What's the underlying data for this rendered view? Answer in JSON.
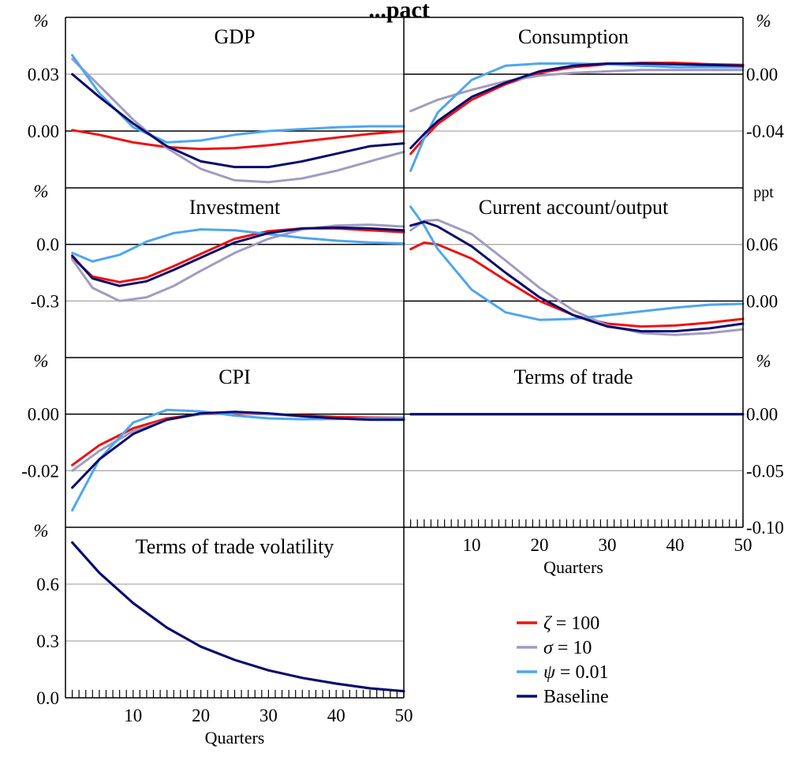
{
  "figure": {
    "title": "...pact",
    "legend": [
      {
        "symbol": "ζ",
        "text": " = 100",
        "color": "#ee1111"
      },
      {
        "symbol": "σ",
        "text": " = 10",
        "color": "#a09cc0"
      },
      {
        "symbol": "ψ",
        "text": " = 0.01",
        "color": "#4ea6ef"
      },
      {
        "symbol": "",
        "text": "Baseline",
        "color": "#0a0a6e"
      }
    ],
    "colors": {
      "grid": "#aaaaaa",
      "zero_line": "#000000",
      "frame": "#000000"
    }
  },
  "chart_data": [
    {
      "id": "gdp",
      "type": "line",
      "title": "GDP",
      "unit": "%",
      "ylim": [
        -0.03,
        0.06
      ],
      "yticks": [
        "0.00",
        "0.03"
      ],
      "series": [
        {
          "name": "ζ = 100",
          "color": "#ee1111",
          "x": [
            1,
            5,
            10,
            15,
            20,
            25,
            30,
            35,
            40,
            45,
            50
          ],
          "values": [
            0.0005,
            -0.002,
            -0.006,
            -0.0085,
            -0.0095,
            -0.009,
            -0.0075,
            -0.0055,
            -0.0035,
            -0.0015,
            0.0
          ]
        },
        {
          "name": "σ = 10",
          "color": "#a09cc0",
          "x": [
            1,
            5,
            10,
            15,
            20,
            25,
            30,
            35,
            40,
            45,
            50
          ],
          "values": [
            0.038,
            0.024,
            0.006,
            -0.009,
            -0.02,
            -0.026,
            -0.027,
            -0.025,
            -0.021,
            -0.016,
            -0.011
          ]
        },
        {
          "name": "ψ = 0.01",
          "color": "#4ea6ef",
          "x": [
            1,
            5,
            10,
            15,
            20,
            25,
            30,
            35,
            40,
            45,
            50
          ],
          "values": [
            0.04,
            0.02,
            0.002,
            -0.006,
            -0.005,
            -0.002,
            0.0,
            0.001,
            0.002,
            0.0025,
            0.0025
          ]
        },
        {
          "name": "Baseline",
          "color": "#0a0a6e",
          "x": [
            1,
            5,
            10,
            15,
            20,
            25,
            30,
            35,
            40,
            45,
            50
          ],
          "values": [
            0.03,
            0.018,
            0.004,
            -0.008,
            -0.016,
            -0.019,
            -0.019,
            -0.016,
            -0.012,
            -0.008,
            -0.0065
          ]
        }
      ]
    },
    {
      "id": "consumption",
      "type": "line",
      "title": "Consumption",
      "unit": "%",
      "ylim": [
        -0.08,
        0.04
      ],
      "yticks": [
        "0.00",
        "-0.04"
      ],
      "series": [
        {
          "name": "ζ = 100",
          "color": "#ee1111",
          "x": [
            1,
            3,
            5,
            10,
            15,
            20,
            25,
            30,
            35,
            40,
            45,
            50
          ],
          "values": [
            -0.056,
            -0.045,
            -0.035,
            -0.018,
            -0.007,
            0.001,
            0.005,
            0.007,
            0.008,
            0.008,
            0.007,
            0.0065
          ]
        },
        {
          "name": "σ = 10",
          "color": "#a09cc0",
          "x": [
            1,
            3,
            5,
            10,
            15,
            20,
            25,
            30,
            35,
            40,
            45,
            50
          ],
          "values": [
            -0.026,
            -0.022,
            -0.018,
            -0.011,
            -0.005,
            -0.001,
            0.001,
            0.002,
            0.003,
            0.003,
            0.003,
            0.003
          ]
        },
        {
          "name": "ψ = 0.01",
          "color": "#4ea6ef",
          "x": [
            1,
            3,
            5,
            10,
            15,
            20,
            25,
            30,
            35,
            40,
            45,
            50
          ],
          "values": [
            -0.068,
            -0.045,
            -0.027,
            -0.004,
            0.006,
            0.0075,
            0.0075,
            0.007,
            0.006,
            0.005,
            0.005,
            0.005
          ]
        },
        {
          "name": "Baseline",
          "color": "#0a0a6e",
          "x": [
            1,
            3,
            5,
            10,
            15,
            20,
            25,
            30,
            35,
            40,
            45,
            50
          ],
          "values": [
            -0.052,
            -0.042,
            -0.033,
            -0.016,
            -0.006,
            0.002,
            0.006,
            0.0075,
            0.0075,
            0.007,
            0.0065,
            0.006
          ]
        }
      ]
    },
    {
      "id": "investment",
      "type": "line",
      "title": "Investment",
      "unit": "%",
      "ylim": [
        -0.6,
        0.3
      ],
      "yticks": [
        "0.0",
        "-0.3"
      ],
      "series": [
        {
          "name": "ζ = 100",
          "color": "#ee1111",
          "x": [
            1,
            4,
            8,
            12,
            16,
            20,
            25,
            30,
            35,
            40,
            45,
            50
          ],
          "values": [
            -0.07,
            -0.17,
            -0.2,
            -0.175,
            -0.115,
            -0.05,
            0.03,
            0.07,
            0.085,
            0.085,
            0.075,
            0.065
          ]
        },
        {
          "name": "σ = 10",
          "color": "#a09cc0",
          "x": [
            1,
            4,
            8,
            12,
            16,
            20,
            25,
            30,
            35,
            40,
            45,
            50
          ],
          "values": [
            -0.08,
            -0.23,
            -0.3,
            -0.28,
            -0.22,
            -0.14,
            -0.045,
            0.03,
            0.08,
            0.1,
            0.105,
            0.095
          ]
        },
        {
          "name": "ψ = 0.01",
          "color": "#4ea6ef",
          "x": [
            1,
            4,
            8,
            12,
            16,
            20,
            25,
            30,
            35,
            40,
            45,
            50
          ],
          "values": [
            -0.045,
            -0.09,
            -0.055,
            0.015,
            0.06,
            0.08,
            0.075,
            0.055,
            0.035,
            0.02,
            0.01,
            0.005
          ]
        },
        {
          "name": "Baseline",
          "color": "#0a0a6e",
          "x": [
            1,
            4,
            8,
            12,
            16,
            20,
            25,
            30,
            35,
            40,
            45,
            50
          ],
          "values": [
            -0.06,
            -0.18,
            -0.22,
            -0.195,
            -0.135,
            -0.07,
            0.01,
            0.06,
            0.085,
            0.09,
            0.085,
            0.075
          ]
        }
      ]
    },
    {
      "id": "current_account",
      "type": "line",
      "title": "Current account/output",
      "unit": "ppt",
      "ylim": [
        -0.06,
        0.12
      ],
      "yticks": [
        "0.06",
        "0.00"
      ],
      "series": [
        {
          "name": "ζ = 100",
          "color": "#ee1111",
          "x": [
            1,
            3,
            5,
            10,
            15,
            20,
            25,
            30,
            35,
            40,
            45,
            50
          ],
          "values": [
            0.055,
            0.062,
            0.06,
            0.045,
            0.022,
            0.0,
            -0.015,
            -0.024,
            -0.027,
            -0.026,
            -0.023,
            -0.019
          ]
        },
        {
          "name": "σ = 10",
          "color": "#a09cc0",
          "x": [
            1,
            3,
            5,
            10,
            15,
            20,
            25,
            30,
            35,
            40,
            45,
            50
          ],
          "values": [
            0.075,
            0.085,
            0.086,
            0.071,
            0.043,
            0.014,
            -0.01,
            -0.026,
            -0.034,
            -0.036,
            -0.034,
            -0.03
          ]
        },
        {
          "name": "ψ = 0.01",
          "color": "#4ea6ef",
          "x": [
            1,
            3,
            5,
            10,
            15,
            20,
            25,
            30,
            35,
            40,
            45,
            50
          ],
          "values": [
            0.1,
            0.08,
            0.055,
            0.012,
            -0.012,
            -0.02,
            -0.019,
            -0.015,
            -0.011,
            -0.007,
            -0.004,
            -0.003
          ]
        },
        {
          "name": "Baseline",
          "color": "#0a0a6e",
          "x": [
            1,
            3,
            5,
            10,
            15,
            20,
            25,
            30,
            35,
            40,
            45,
            50
          ],
          "values": [
            0.08,
            0.084,
            0.079,
            0.058,
            0.03,
            0.004,
            -0.015,
            -0.027,
            -0.032,
            -0.032,
            -0.029,
            -0.024
          ]
        }
      ]
    },
    {
      "id": "cpi",
      "type": "line",
      "title": "CPI",
      "unit": "%",
      "ylim": [
        -0.04,
        0.02
      ],
      "yticks": [
        "0.00",
        "-0.02"
      ],
      "series": [
        {
          "name": "ζ = 100",
          "color": "#ee1111",
          "x": [
            1,
            5,
            10,
            15,
            20,
            25,
            30,
            35,
            40,
            45,
            50
          ],
          "values": [
            -0.018,
            -0.011,
            -0.005,
            -0.0015,
            0.0,
            0.0003,
            0.0,
            -0.0005,
            -0.001,
            -0.0012,
            -0.0013
          ]
        },
        {
          "name": "σ = 10",
          "color": "#a09cc0",
          "x": [
            1,
            5,
            10,
            15,
            20,
            25,
            30,
            35,
            40,
            45,
            50
          ],
          "values": [
            -0.02,
            -0.013,
            -0.006,
            -0.002,
            0.0,
            0.0005,
            0.0,
            -0.0008,
            -0.0015,
            -0.0018,
            -0.0018
          ]
        },
        {
          "name": "ψ = 0.01",
          "color": "#4ea6ef",
          "x": [
            1,
            5,
            10,
            15,
            20,
            25,
            30,
            35,
            40,
            45,
            50
          ],
          "values": [
            -0.034,
            -0.016,
            -0.003,
            0.0015,
            0.001,
            -0.0005,
            -0.0015,
            -0.0018,
            -0.0017,
            -0.0015,
            -0.0013
          ]
        },
        {
          "name": "Baseline",
          "color": "#0a0a6e",
          "x": [
            1,
            5,
            10,
            15,
            20,
            25,
            30,
            35,
            40,
            45,
            50
          ],
          "values": [
            -0.026,
            -0.016,
            -0.007,
            -0.002,
            0.0003,
            0.0008,
            0.0003,
            -0.0007,
            -0.0015,
            -0.002,
            -0.002
          ]
        }
      ]
    },
    {
      "id": "terms_of_trade",
      "type": "line",
      "title": "Terms of trade",
      "unit": "%",
      "ylim": [
        -0.1,
        0.05
      ],
      "yticks": [
        "0.00",
        "-0.05",
        "-0.10"
      ],
      "series": [
        {
          "name": "ζ = 100",
          "color": "#ee1111",
          "x": [
            1,
            50
          ],
          "values": [
            0.0,
            0.0
          ]
        },
        {
          "name": "σ = 10",
          "color": "#a09cc0",
          "x": [
            1,
            50
          ],
          "values": [
            0.0,
            0.0
          ]
        },
        {
          "name": "ψ = 0.01",
          "color": "#4ea6ef",
          "x": [
            1,
            50
          ],
          "values": [
            0.0,
            0.0
          ]
        },
        {
          "name": "Baseline",
          "color": "#0a0a6e",
          "x": [
            1,
            50
          ],
          "values": [
            0.0,
            0.0
          ]
        }
      ]
    },
    {
      "id": "tot_volatility",
      "type": "line",
      "title": "Terms of trade volatility",
      "unit": "%",
      "ylim": [
        0.0,
        0.9
      ],
      "yticks": [
        "0.0",
        "0.3",
        "0.6"
      ],
      "series": [
        {
          "name": "ζ = 100",
          "color": "#ee1111",
          "x": [
            1,
            5,
            10,
            15,
            20,
            25,
            30,
            35,
            40,
            45,
            50
          ],
          "values": [
            0.82,
            0.66,
            0.5,
            0.37,
            0.27,
            0.2,
            0.145,
            0.105,
            0.075,
            0.05,
            0.035
          ]
        },
        {
          "name": "σ = 10",
          "color": "#a09cc0",
          "x": [
            1,
            5,
            10,
            15,
            20,
            25,
            30,
            35,
            40,
            45,
            50
          ],
          "values": [
            0.82,
            0.66,
            0.5,
            0.37,
            0.27,
            0.2,
            0.145,
            0.105,
            0.075,
            0.05,
            0.035
          ]
        },
        {
          "name": "ψ = 0.01",
          "color": "#4ea6ef",
          "x": [
            1,
            5,
            10,
            15,
            20,
            25,
            30,
            35,
            40,
            45,
            50
          ],
          "values": [
            0.82,
            0.66,
            0.5,
            0.37,
            0.27,
            0.2,
            0.145,
            0.105,
            0.075,
            0.05,
            0.035
          ]
        },
        {
          "name": "Baseline",
          "color": "#0a0a6e",
          "x": [
            1,
            5,
            10,
            15,
            20,
            25,
            30,
            35,
            40,
            45,
            50
          ],
          "values": [
            0.82,
            0.66,
            0.5,
            0.37,
            0.27,
            0.2,
            0.145,
            0.105,
            0.075,
            0.05,
            0.035
          ]
        }
      ]
    }
  ],
  "axes": {
    "x_ticks": [
      "10",
      "20",
      "30",
      "40",
      "50"
    ],
    "x_label": "Quarters",
    "xlim": [
      0,
      50
    ]
  }
}
